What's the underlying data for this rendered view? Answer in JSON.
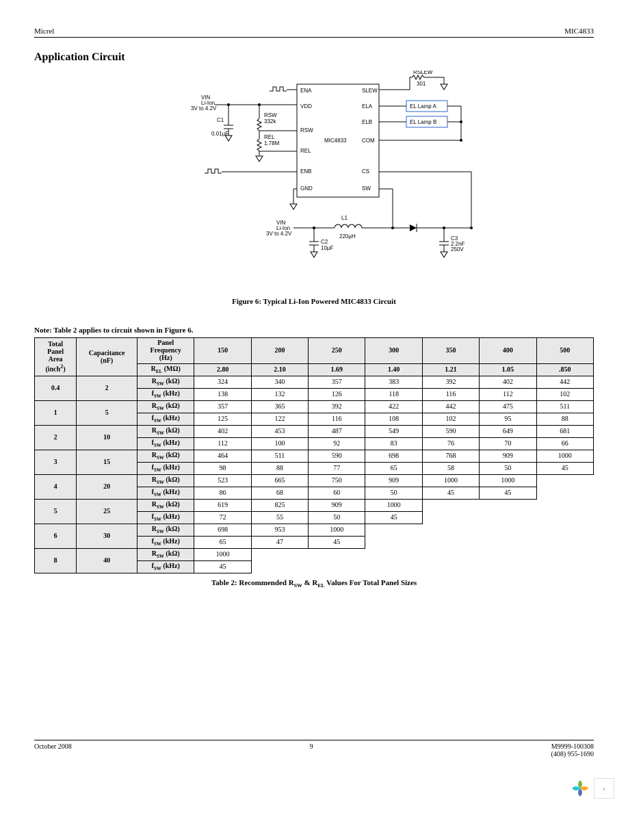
{
  "header": {
    "left": "Micrel",
    "right": "MIC4833"
  },
  "section_title": "Application Circuit",
  "figure_caption": "Figure 6: Typical Li-Ion Powered MIC4833 Circuit",
  "circuit": {
    "vin_label": "VIN",
    "vin_sub": "Li-Ion",
    "vin_range": "3V to 4.2V",
    "c1": "C1",
    "c1_val": "0.01µF",
    "rsw": "RSW",
    "rsw_val": "332k",
    "rel": "REL",
    "rel_val": "1.78M",
    "ic": "MIC4833",
    "pins_left": [
      "ENA",
      "VDD",
      "RSW",
      "REL",
      "ENB",
      "GND"
    ],
    "pins_right": [
      "SLEW",
      "ELA",
      "ELB",
      "COM",
      "CS",
      "SW"
    ],
    "rslew": "RSLEW",
    "rslew_val": "301",
    "lamp_a": "EL Lamp A",
    "lamp_b": "EL Lamp B",
    "l1": "L1",
    "l1_val": "220µH",
    "c2": "C2",
    "c2_val": "10µF",
    "c3": "C3",
    "c3_val": "2.2nF",
    "c3_volt": "250V"
  },
  "note": "Note: Table 2 applies to circuit shown in Figure 6.",
  "table": {
    "col_headers": {
      "area": "Total Panel Area (inch²)",
      "cap": "Capacitance (nF)",
      "freq": "Panel Frequency (Hz)",
      "rel_row": "R_EL (MΩ)"
    },
    "freq_cols": [
      "150",
      "200",
      "250",
      "300",
      "350",
      "400",
      "500"
    ],
    "rel_vals": [
      "2.80",
      "2.10",
      "1.69",
      "1.40",
      "1.21",
      "1.05",
      ".850"
    ],
    "rsw_label": "R_SW (kΩ)",
    "fsw_label": "f_SW (kHz)",
    "rows": [
      {
        "area": "0.4",
        "cap": "2",
        "rsw": [
          "324",
          "340",
          "357",
          "383",
          "392",
          "402",
          "442"
        ],
        "fsw": [
          "138",
          "132",
          "126",
          "118",
          "116",
          "112",
          "102"
        ],
        "cols": 7
      },
      {
        "area": "1",
        "cap": "5",
        "rsw": [
          "357",
          "365",
          "392",
          "422",
          "442",
          "475",
          "511"
        ],
        "fsw": [
          "125",
          "122",
          "116",
          "108",
          "102",
          "95",
          "88"
        ],
        "cols": 7
      },
      {
        "area": "2",
        "cap": "10",
        "rsw": [
          "402",
          "453",
          "487",
          "549",
          "590",
          "649",
          "681"
        ],
        "fsw": [
          "112",
          "100",
          "92",
          "83",
          "76",
          "70",
          "66"
        ],
        "cols": 7
      },
      {
        "area": "3",
        "cap": "15",
        "rsw": [
          "464",
          "511",
          "590",
          "698",
          "768",
          "909",
          "1000"
        ],
        "fsw": [
          "98",
          "88",
          "77",
          "65",
          "58",
          "50",
          "45"
        ],
        "cols": 7
      },
      {
        "area": "4",
        "cap": "20",
        "rsw": [
          "523",
          "665",
          "750",
          "909",
          "1000",
          "1000",
          ""
        ],
        "fsw": [
          "86",
          "68",
          "60",
          "50",
          "45",
          "45",
          ""
        ],
        "cols": 6
      },
      {
        "area": "5",
        "cap": "25",
        "rsw": [
          "619",
          "825",
          "909",
          "1000",
          "",
          "",
          ""
        ],
        "fsw": [
          "72",
          "55",
          "50",
          "45",
          "",
          "",
          ""
        ],
        "cols": 4
      },
      {
        "area": "6",
        "cap": "30",
        "rsw": [
          "698",
          "953",
          "1000",
          "",
          "",
          "",
          ""
        ],
        "fsw": [
          "65",
          "47",
          "45",
          "",
          "",
          "",
          ""
        ],
        "cols": 3
      },
      {
        "area": "8",
        "cap": "40",
        "rsw": [
          "1000",
          "",
          "",
          "",
          "",
          "",
          ""
        ],
        "fsw": [
          "45",
          "",
          "",
          "",
          "",
          "",
          ""
        ],
        "cols": 1
      }
    ]
  },
  "table_caption": "Table 2: Recommended R_SW & R_EL Values For Total Panel Sizes",
  "footer": {
    "date": "October 2008",
    "page": "9",
    "doc": "M9999-100308",
    "phone": "(408) 955-1690"
  },
  "logo_colors": [
    "#7cb342",
    "#ffa726",
    "#5c6bc0",
    "#26c6da"
  ]
}
